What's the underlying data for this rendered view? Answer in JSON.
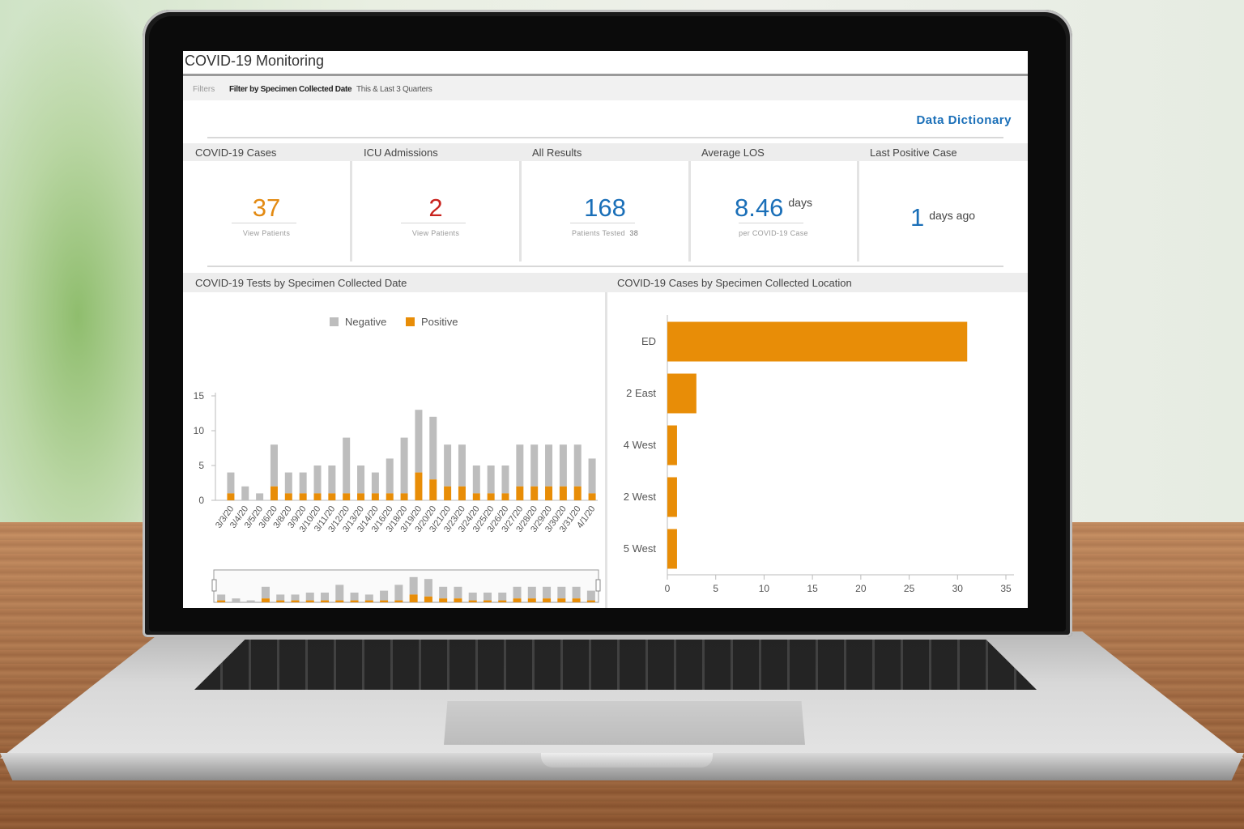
{
  "app": {
    "title": "COVID-19 Monitoring"
  },
  "filters": {
    "label": "Filters",
    "key": "Filter by Specimen Collected Date",
    "value": "This & Last 3 Quarters"
  },
  "links": {
    "data_dictionary": "Data Dictionary"
  },
  "kpis": [
    {
      "header": "COVID-19 Cases",
      "value": "37",
      "sub": "View Patients",
      "color": "#e38a12"
    },
    {
      "header": "ICU Admissions",
      "value": "2",
      "sub": "View Patients",
      "color": "#c9231e"
    },
    {
      "header": "All Results",
      "value": "168",
      "sub": "Patients Tested",
      "sub_value": "38",
      "color": "#1a6fb8"
    },
    {
      "header": "Average LOS",
      "value": "8.46",
      "unit": "days",
      "sub": "per COVID-19 Case",
      "color": "#1a6fb8"
    },
    {
      "header": "Last Positive Case",
      "value": "1",
      "unit": "days ago",
      "color": "#1a6fb8"
    }
  ],
  "colors": {
    "negative": "#bdbdbd",
    "positive": "#e88d07",
    "accent": "#1a6fb8"
  },
  "chart_data": [
    {
      "type": "bar",
      "stacked": true,
      "title": "COVID-19 Tests by Specimen Collected Date",
      "categories": [
        "3/3/20",
        "3/4/20",
        "3/5/20",
        "3/6/20",
        "3/8/20",
        "3/9/20",
        "3/10/20",
        "3/11/20",
        "3/12/20",
        "3/13/20",
        "3/14/20",
        "3/16/20",
        "3/18/20",
        "3/19/20",
        "3/20/20",
        "3/21/20",
        "3/23/20",
        "3/24/20",
        "3/25/20",
        "3/26/20",
        "3/27/20",
        "3/28/20",
        "3/29/20",
        "3/30/20",
        "3/31/20",
        "4/1/20"
      ],
      "series": [
        {
          "name": "Negative",
          "values": [
            3,
            2,
            1,
            6,
            3,
            3,
            4,
            4,
            8,
            4,
            3,
            5,
            8,
            9,
            9,
            6,
            6,
            4,
            4,
            4,
            6,
            6,
            6,
            6,
            6,
            5
          ]
        },
        {
          "name": "Positive",
          "values": [
            1,
            0,
            0,
            2,
            1,
            1,
            1,
            1,
            1,
            1,
            1,
            1,
            1,
            4,
            3,
            2,
            2,
            1,
            1,
            1,
            2,
            2,
            2,
            2,
            2,
            1
          ]
        }
      ],
      "ylim": [
        0,
        15
      ],
      "yticks": [
        0,
        5,
        10,
        15
      ],
      "legend": "top-center"
    },
    {
      "type": "bar",
      "orientation": "horizontal",
      "title": "COVID-19 Cases by Specimen Collected Location",
      "categories": [
        "ED",
        "2 East",
        "4 West",
        "2 West",
        "5 West"
      ],
      "values": [
        31,
        3,
        1,
        1,
        1
      ],
      "xlim": [
        0,
        35
      ],
      "xticks": [
        0,
        5,
        10,
        15,
        20,
        25,
        30,
        35
      ]
    }
  ]
}
